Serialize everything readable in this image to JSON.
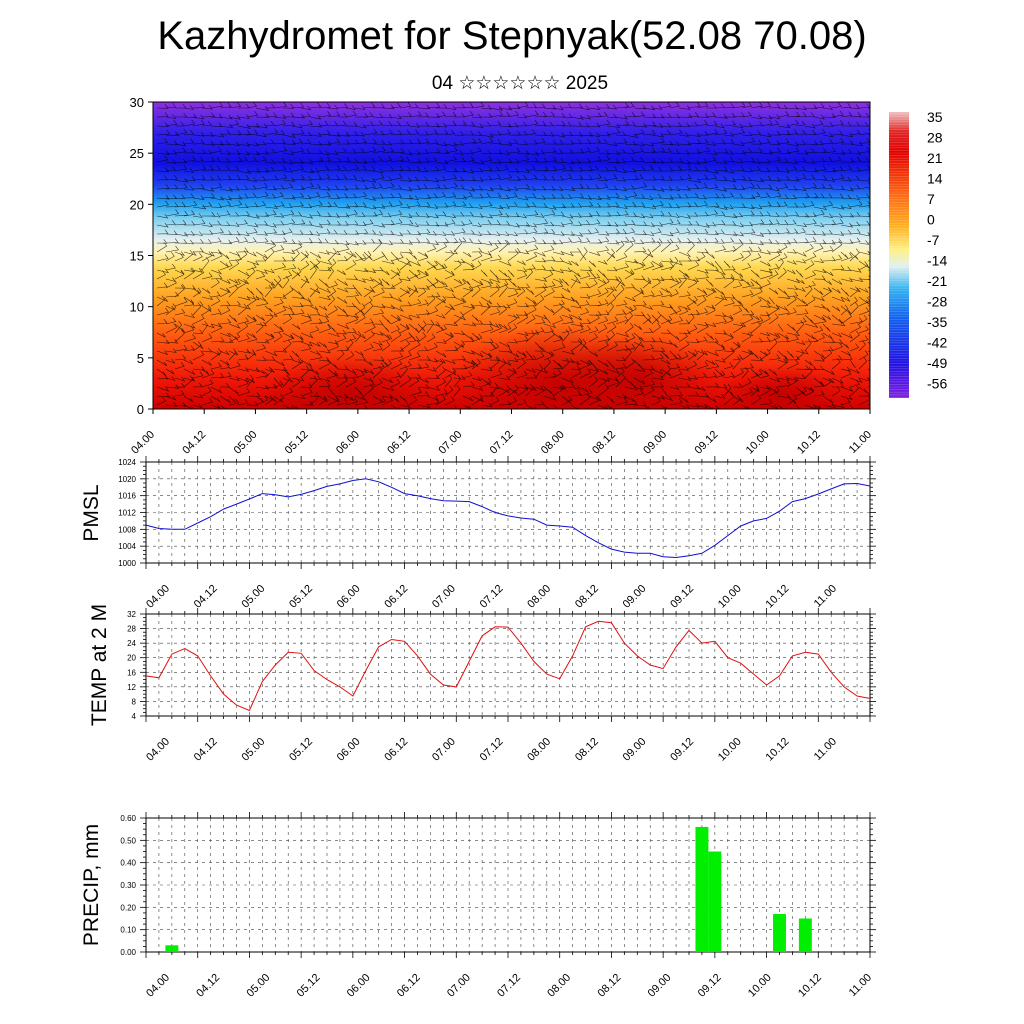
{
  "header": {
    "title": "Kazhydromet for Stepnyak(52.08 70.08)",
    "subtitle": "04 ☆☆☆☆☆☆ 2025"
  },
  "chart_data": [
    {
      "type": "heatmap",
      "title": "",
      "ylim": [
        0,
        30
      ],
      "yticks": [
        "0",
        "5",
        "10",
        "15",
        "20",
        "25",
        "30"
      ],
      "xticks": [
        "04.00",
        "04.12",
        "05.00",
        "05.12",
        "06.00",
        "06.12",
        "07.00",
        "07.12",
        "08.00",
        "08.12",
        "09.00",
        "09.12",
        "10.00",
        "10.12",
        "11.00"
      ],
      "colorbar_labels": [
        "35",
        "28",
        "21",
        "14",
        "7",
        "0",
        "-7",
        "-14",
        "-21",
        "-28",
        "-35",
        "-42",
        "-49",
        "-56"
      ],
      "colorbar_range": [
        -63,
        42
      ],
      "colors": {
        "hot": "#d80000",
        "orange": "#ff8000",
        "yellow": "#ffe040",
        "pale": "#f0f0e8",
        "cyan": "#30b0f0",
        "blue": "#1010e0",
        "violet": "#9030e0"
      },
      "overlay": "wind barbs, black",
      "grid": false
    },
    {
      "type": "line",
      "ylabel": "PMSL",
      "ylim": [
        1000,
        1024
      ],
      "yticks": [
        "1000",
        "1004",
        "1008",
        "1012",
        "1016",
        "1020",
        "1024"
      ],
      "xticks": [
        "04.00",
        "04.12",
        "05.00",
        "05.12",
        "06.00",
        "06.12",
        "07.00",
        "07.12",
        "08.00",
        "08.12",
        "09.00",
        "09.12",
        "10.00",
        "10.12",
        "11.00"
      ],
      "color": "#1010d0",
      "grid": true,
      "x": [
        0,
        3,
        6,
        9,
        12,
        15,
        18,
        21,
        24,
        27,
        30,
        33,
        36,
        39,
        42,
        45,
        48,
        51,
        54,
        57,
        60,
        63,
        66,
        69,
        72,
        75,
        78,
        81,
        84,
        87,
        90,
        93,
        96,
        99,
        102,
        105,
        108,
        111,
        114,
        117,
        120,
        123,
        126,
        129,
        132,
        135,
        138,
        141,
        144,
        147,
        150,
        153,
        156,
        159,
        162,
        165,
        168
      ],
      "values": [
        1009,
        1008.2,
        1008,
        1008,
        1009.5,
        1011,
        1012.8,
        1014,
        1015.2,
        1016.5,
        1016.2,
        1015.7,
        1016.3,
        1017.2,
        1018.2,
        1018.8,
        1019.6,
        1020,
        1019.3,
        1018,
        1016.5,
        1016,
        1015.3,
        1014.8,
        1014.7,
        1014.6,
        1013.4,
        1012,
        1011.2,
        1010.7,
        1010.4,
        1009,
        1008.8,
        1008.5,
        1006.5,
        1004.8,
        1003.3,
        1002.6,
        1002.3,
        1002.3,
        1001.5,
        1001.3,
        1001.7,
        1002.3,
        1004.2,
        1006.5,
        1008.8,
        1010,
        1010.6,
        1012.3,
        1014.6,
        1015.3,
        1016.4,
        1017.6,
        1018.8,
        1018.9,
        1018.3
      ]
    },
    {
      "type": "line",
      "ylabel": "TEMP at 2 M",
      "ylim": [
        4,
        32
      ],
      "yticks": [
        "4",
        "8",
        "12",
        "16",
        "20",
        "24",
        "28",
        "32"
      ],
      "xticks": [
        "04.00",
        "04.12",
        "05.00",
        "05.12",
        "06.00",
        "06.12",
        "07.00",
        "07.12",
        "08.00",
        "08.12",
        "09.00",
        "09.12",
        "10.00",
        "10.12",
        "11.00"
      ],
      "color": "#e01010",
      "grid": true,
      "x": [
        0,
        3,
        6,
        9,
        12,
        15,
        18,
        21,
        24,
        27,
        30,
        33,
        36,
        39,
        42,
        45,
        48,
        51,
        54,
        57,
        60,
        63,
        66,
        69,
        72,
        75,
        78,
        81,
        84,
        87,
        90,
        93,
        96,
        99,
        102,
        105,
        108,
        111,
        114,
        117,
        120,
        123,
        126,
        129,
        132,
        135,
        138,
        141,
        144,
        147,
        150,
        153,
        156,
        159,
        162,
        165,
        168
      ],
      "values": [
        15,
        14.5,
        21,
        22.5,
        20.5,
        15,
        10,
        7,
        5.5,
        13.5,
        18,
        21.5,
        21.2,
        16.5,
        14,
        12,
        9.5,
        16.5,
        23,
        25,
        24.5,
        20.5,
        15.5,
        12.5,
        12,
        19,
        26,
        28.5,
        28.4,
        24,
        19,
        15.5,
        14.2,
        20.5,
        28.5,
        30,
        29.6,
        24,
        20.5,
        18,
        17,
        23,
        27.5,
        24,
        24.5,
        20,
        18.5,
        15.5,
        12.5,
        15,
        20.5,
        21.5,
        21,
        16,
        12,
        9.5,
        8.8
      ]
    },
    {
      "type": "bar",
      "ylabel": "PRECIP, mm",
      "ylim": [
        0,
        0.6
      ],
      "yticks": [
        "0.00",
        "0.10",
        "0.20",
        "0.30",
        "0.40",
        "0.50",
        "0.60"
      ],
      "xticks": [
        "04.00",
        "04.12",
        "05.00",
        "05.12",
        "06.00",
        "06.12",
        "07.00",
        "07.12",
        "08.00",
        "08.12",
        "09.00",
        "09.12",
        "10.00",
        "10.12",
        "11.00"
      ],
      "color": "#00ee00",
      "grid": true,
      "x": [
        6,
        129,
        132,
        147,
        153
      ],
      "values": [
        0.03,
        0.56,
        0.45,
        0.17,
        0.15
      ]
    }
  ]
}
